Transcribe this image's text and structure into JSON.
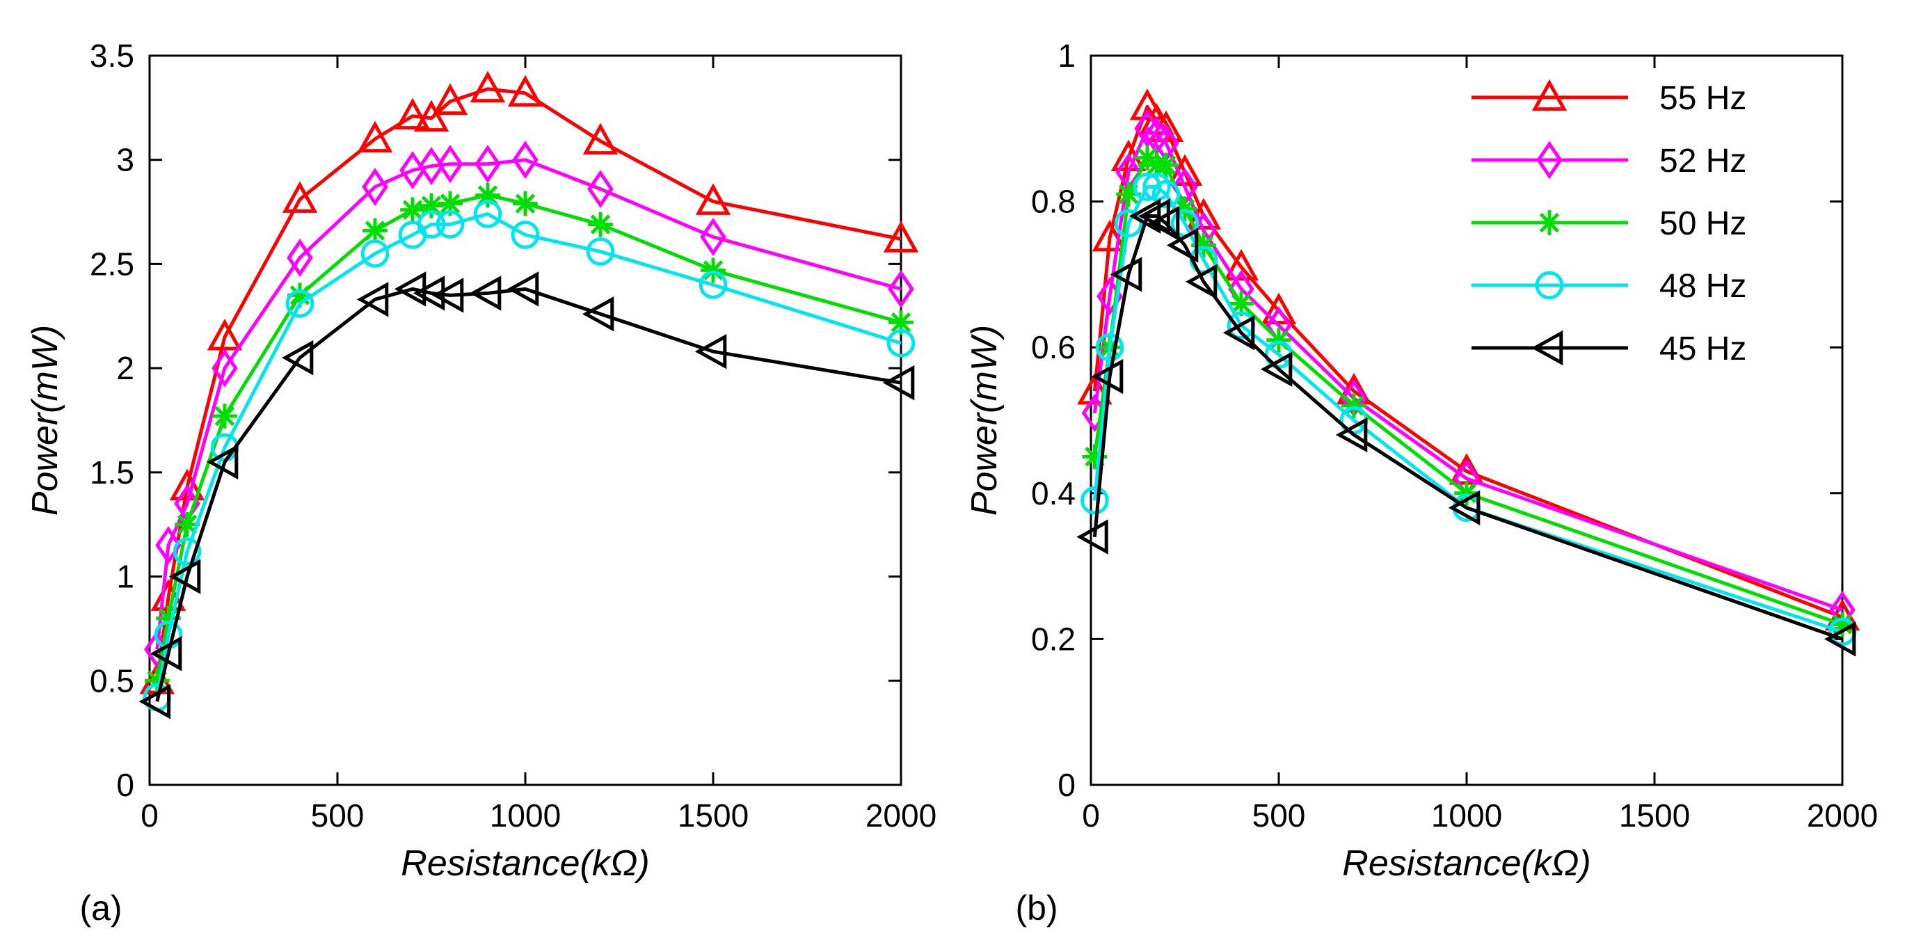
{
  "chart_data": [
    {
      "type": "line",
      "panel_label": "(a)",
      "xlabel": "Resistance(kΩ)",
      "ylabel": "Power(mW)",
      "xlim": [
        0,
        2000
      ],
      "ylim": [
        0,
        3.5
      ],
      "xticks": [
        0,
        500,
        1000,
        1500,
        2000
      ],
      "xtick_labels": [
        "0",
        "500",
        "1000",
        "1500",
        "2000"
      ],
      "yticks": [
        0,
        0.5,
        1,
        1.5,
        2,
        2.5,
        3,
        3.5
      ],
      "ytick_labels": [
        "0",
        "0.5",
        "1",
        "1.5",
        "2",
        "2.5",
        "3",
        "3.5"
      ],
      "grid": false,
      "legend": null,
      "series": [
        {
          "name": "55 Hz",
          "color": "#ff0000",
          "marker": "triangle-up",
          "x": [
            20,
            50,
            100,
            200,
            400,
            600,
            700,
            750,
            800,
            900,
            1000,
            1200,
            1500,
            2000
          ],
          "y": [
            0.5,
            0.9,
            1.43,
            2.15,
            2.81,
            3.1,
            3.21,
            3.2,
            3.28,
            3.34,
            3.32,
            3.09,
            2.8,
            2.62
          ]
        },
        {
          "name": "52 Hz",
          "color": "#ff00ff",
          "marker": "diamond",
          "x": [
            20,
            50,
            100,
            200,
            400,
            600,
            700,
            750,
            800,
            900,
            1000,
            1200,
            1500,
            2000
          ],
          "y": [
            0.65,
            1.15,
            1.35,
            2.0,
            2.53,
            2.87,
            2.95,
            2.97,
            2.98,
            2.98,
            3.0,
            2.86,
            2.63,
            2.38
          ]
        },
        {
          "name": "50 Hz",
          "color": "#00dd00",
          "marker": "asterisk",
          "x": [
            20,
            50,
            100,
            200,
            400,
            600,
            700,
            750,
            800,
            900,
            1000,
            1200,
            1500,
            2000
          ],
          "y": [
            0.5,
            0.8,
            1.25,
            1.77,
            2.35,
            2.66,
            2.76,
            2.78,
            2.79,
            2.83,
            2.79,
            2.69,
            2.47,
            2.22
          ]
        },
        {
          "name": "48 Hz",
          "color": "#00e5ee",
          "marker": "circle",
          "x": [
            20,
            50,
            100,
            200,
            400,
            600,
            700,
            750,
            800,
            900,
            1000,
            1200,
            1500,
            2000
          ],
          "y": [
            0.42,
            0.72,
            1.12,
            1.62,
            2.31,
            2.55,
            2.64,
            2.69,
            2.69,
            2.74,
            2.64,
            2.56,
            2.4,
            2.12
          ]
        },
        {
          "name": "45 Hz",
          "color": "#000000",
          "marker": "triangle-left",
          "x": [
            20,
            50,
            100,
            200,
            400,
            600,
            700,
            750,
            800,
            900,
            1000,
            1200,
            1500,
            2000
          ],
          "y": [
            0.4,
            0.63,
            1.0,
            1.55,
            2.05,
            2.33,
            2.38,
            2.36,
            2.35,
            2.36,
            2.38,
            2.26,
            2.08,
            1.93
          ]
        }
      ]
    },
    {
      "type": "line",
      "panel_label": "(b)",
      "xlabel": "Resistance(kΩ)",
      "ylabel": "Power(mW)",
      "xlim": [
        0,
        2000
      ],
      "ylim": [
        0,
        1
      ],
      "xticks": [
        0,
        500,
        1000,
        1500,
        2000
      ],
      "xtick_labels": [
        "0",
        "500",
        "1000",
        "1500",
        "2000"
      ],
      "yticks": [
        0,
        0.2,
        0.4,
        0.6,
        0.8,
        1
      ],
      "ytick_labels": [
        "0",
        "0.2",
        "0.4",
        "0.6",
        "0.8",
        "1"
      ],
      "grid": false,
      "legend": "top-right",
      "series": [
        {
          "name": "55 Hz",
          "color": "#ff0000",
          "marker": "triangle-up",
          "x": [
            10,
            50,
            100,
            150,
            175,
            200,
            250,
            300,
            400,
            500,
            700,
            1000,
            2000
          ],
          "y": [
            0.54,
            0.75,
            0.86,
            0.93,
            0.91,
            0.9,
            0.84,
            0.78,
            0.71,
            0.65,
            0.54,
            0.43,
            0.23
          ]
        },
        {
          "name": "52 Hz",
          "color": "#ff00ff",
          "marker": "diamond",
          "x": [
            10,
            50,
            100,
            150,
            175,
            200,
            250,
            300,
            400,
            500,
            700,
            1000,
            2000
          ],
          "y": [
            0.51,
            0.67,
            0.84,
            0.9,
            0.89,
            0.88,
            0.82,
            0.76,
            0.68,
            0.63,
            0.53,
            0.42,
            0.24
          ]
        },
        {
          "name": "50 Hz",
          "color": "#00dd00",
          "marker": "asterisk",
          "x": [
            10,
            50,
            100,
            150,
            175,
            200,
            250,
            300,
            400,
            500,
            700,
            1000,
            2000
          ],
          "y": [
            0.45,
            0.6,
            0.81,
            0.86,
            0.85,
            0.85,
            0.79,
            0.74,
            0.66,
            0.61,
            0.52,
            0.4,
            0.22
          ]
        },
        {
          "name": "48 Hz",
          "color": "#00e5ee",
          "marker": "circle",
          "x": [
            10,
            50,
            100,
            150,
            175,
            200,
            250,
            300,
            400,
            500,
            700,
            1000,
            2000
          ],
          "y": [
            0.39,
            0.6,
            0.77,
            0.82,
            0.82,
            0.81,
            0.77,
            0.72,
            0.63,
            0.59,
            0.5,
            0.38,
            0.21
          ]
        },
        {
          "name": "45 Hz",
          "color": "#000000",
          "marker": "triangle-left",
          "x": [
            10,
            50,
            100,
            150,
            175,
            200,
            250,
            300,
            400,
            500,
            700,
            1000,
            2000
          ],
          "y": [
            0.34,
            0.56,
            0.7,
            0.78,
            0.78,
            0.77,
            0.74,
            0.69,
            0.62,
            0.57,
            0.48,
            0.38,
            0.2
          ]
        }
      ]
    }
  ]
}
